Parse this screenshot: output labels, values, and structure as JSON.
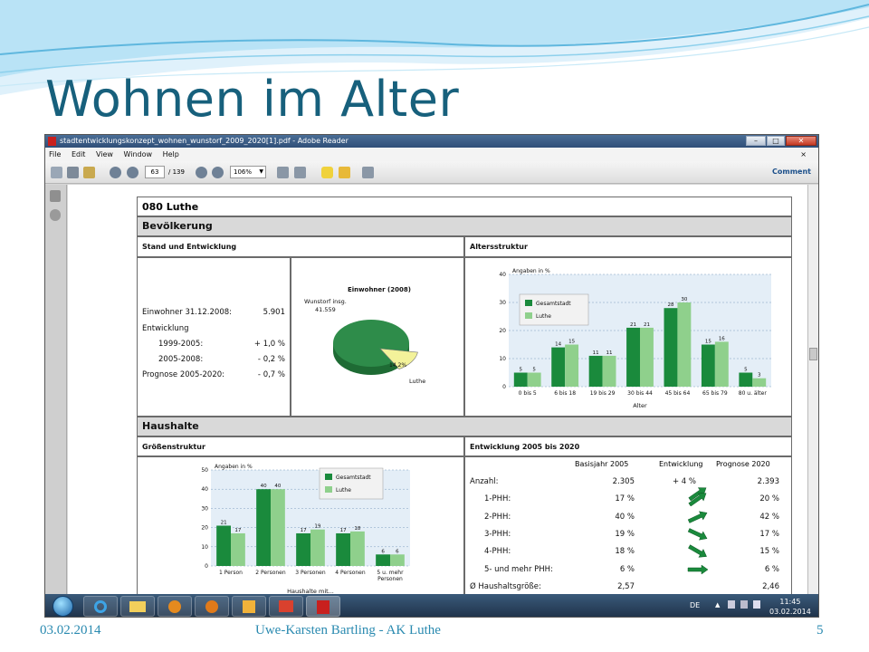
{
  "slide": {
    "title": "Wohnen im Alter",
    "footer_date": "03.02.2014",
    "footer_text": "Uwe-Karsten Bartling - AK Luthe",
    "page_number": "5"
  },
  "window": {
    "title": "stadtentwicklungskonzept_wohnen_wunstorf_2009_2020[1].pdf - Adobe Reader",
    "menu": [
      "File",
      "Edit",
      "View",
      "Window",
      "Help"
    ],
    "menu_close": "×"
  },
  "toolbar": {
    "page_current": "63",
    "page_total": "/ 139",
    "zoom": "106%",
    "comment_label": "Comment"
  },
  "doc": {
    "section_title": "080  Luthe",
    "bevoelkerung": "Bevölkerung",
    "stand_entwicklung": "Stand und Entwicklung",
    "altersstruktur": "Altersstruktur",
    "haushalte": "Haushalte",
    "groessenstruktur": "Größenstruktur",
    "entwicklung_title": "Entwicklung 2005 bis 2020",
    "stats": [
      {
        "label": "Einwohner 31.12.2008:",
        "value": "5.901"
      },
      {
        "label": "Entwicklung",
        "value": ""
      },
      {
        "label": "1999-2005:",
        "value": "+ 1,0 %"
      },
      {
        "label": "2005-2008:",
        "value": "- 0,2 %"
      },
      {
        "label": "Prognose 2005-2020:",
        "value": "- 0,7 %"
      }
    ],
    "pie": {
      "title": "Einwohner (2008)",
      "label_main": "Wunstorf insg.",
      "label_main_value": "41.559",
      "label_slice": "Luthe",
      "slice_pct": "14,2%",
      "slice_fraction": 0.142
    },
    "entwicklung": {
      "headers": [
        "Basisjahr 2005",
        "Entwicklung",
        "Prognose 2020"
      ],
      "rows": [
        {
          "label": "Anzahl:",
          "base": "2.305",
          "dev": "+ 4 %",
          "arrow_deg": -35,
          "prog": "2.393"
        },
        {
          "label": "1-PHH:",
          "base": "17 %",
          "dev": "",
          "arrow_deg": -35,
          "prog": "20 %"
        },
        {
          "label": "2-PHH:",
          "base": "40 %",
          "dev": "",
          "arrow_deg": -25,
          "prog": "42 %"
        },
        {
          "label": "3-PHH:",
          "base": "19 %",
          "dev": "",
          "arrow_deg": 25,
          "prog": "17 %"
        },
        {
          "label": "4-PHH:",
          "base": "18 %",
          "dev": "",
          "arrow_deg": 30,
          "prog": "15 %"
        },
        {
          "label": "5- und mehr PHH:",
          "base": "6 %",
          "dev": "",
          "arrow_deg": 0,
          "prog": "6 %"
        },
        {
          "label": "Ø Haushaltsgröße:",
          "base": "2,57",
          "dev": "",
          "arrow_deg": null,
          "prog": "2,46"
        }
      ]
    }
  },
  "taskbar": {
    "lang": "DE",
    "time": "11:45",
    "date": "03.02.2014"
  },
  "colors": {
    "dark_green": "#1a8a3c",
    "light_green": "#8fd08c",
    "pie_green": "#2e8c4a",
    "pie_slice": "#f3f29a",
    "title_blue": "#17607c"
  },
  "chart_data": [
    {
      "type": "bar",
      "ylabel": "Angaben in %",
      "xlabel": "Alter",
      "ylim": [
        0,
        40
      ],
      "yticks": [
        0,
        10,
        20,
        30,
        40
      ],
      "legend_position": "top-left",
      "categories": [
        "0 bis 5",
        "6 bis 18",
        "19 bis 29",
        "30 bis 44",
        "45 bis 64",
        "65 bis 79",
        "80 u. älter"
      ],
      "series": [
        {
          "name": "Gesamtstadt",
          "values": [
            5,
            14,
            11,
            21,
            28,
            15,
            5
          ]
        },
        {
          "name": "Luthe",
          "values": [
            5,
            15,
            11,
            21,
            30,
            16,
            3
          ]
        }
      ]
    },
    {
      "type": "bar",
      "ylabel": "Angaben in %",
      "xlabel": "Haushalte mit...",
      "ylim": [
        0,
        50
      ],
      "yticks": [
        0,
        10,
        20,
        30,
        40,
        50
      ],
      "legend_position": "top-right",
      "categories": [
        "1 Person",
        "2 Personen",
        "3 Personen",
        "4 Personen",
        "5 u. mehr Personen"
      ],
      "series": [
        {
          "name": "Gesamtstadt",
          "values": [
            21,
            40,
            17,
            17,
            6
          ]
        },
        {
          "name": "Luthe",
          "values": [
            17,
            40,
            19,
            18,
            6
          ]
        }
      ]
    }
  ]
}
